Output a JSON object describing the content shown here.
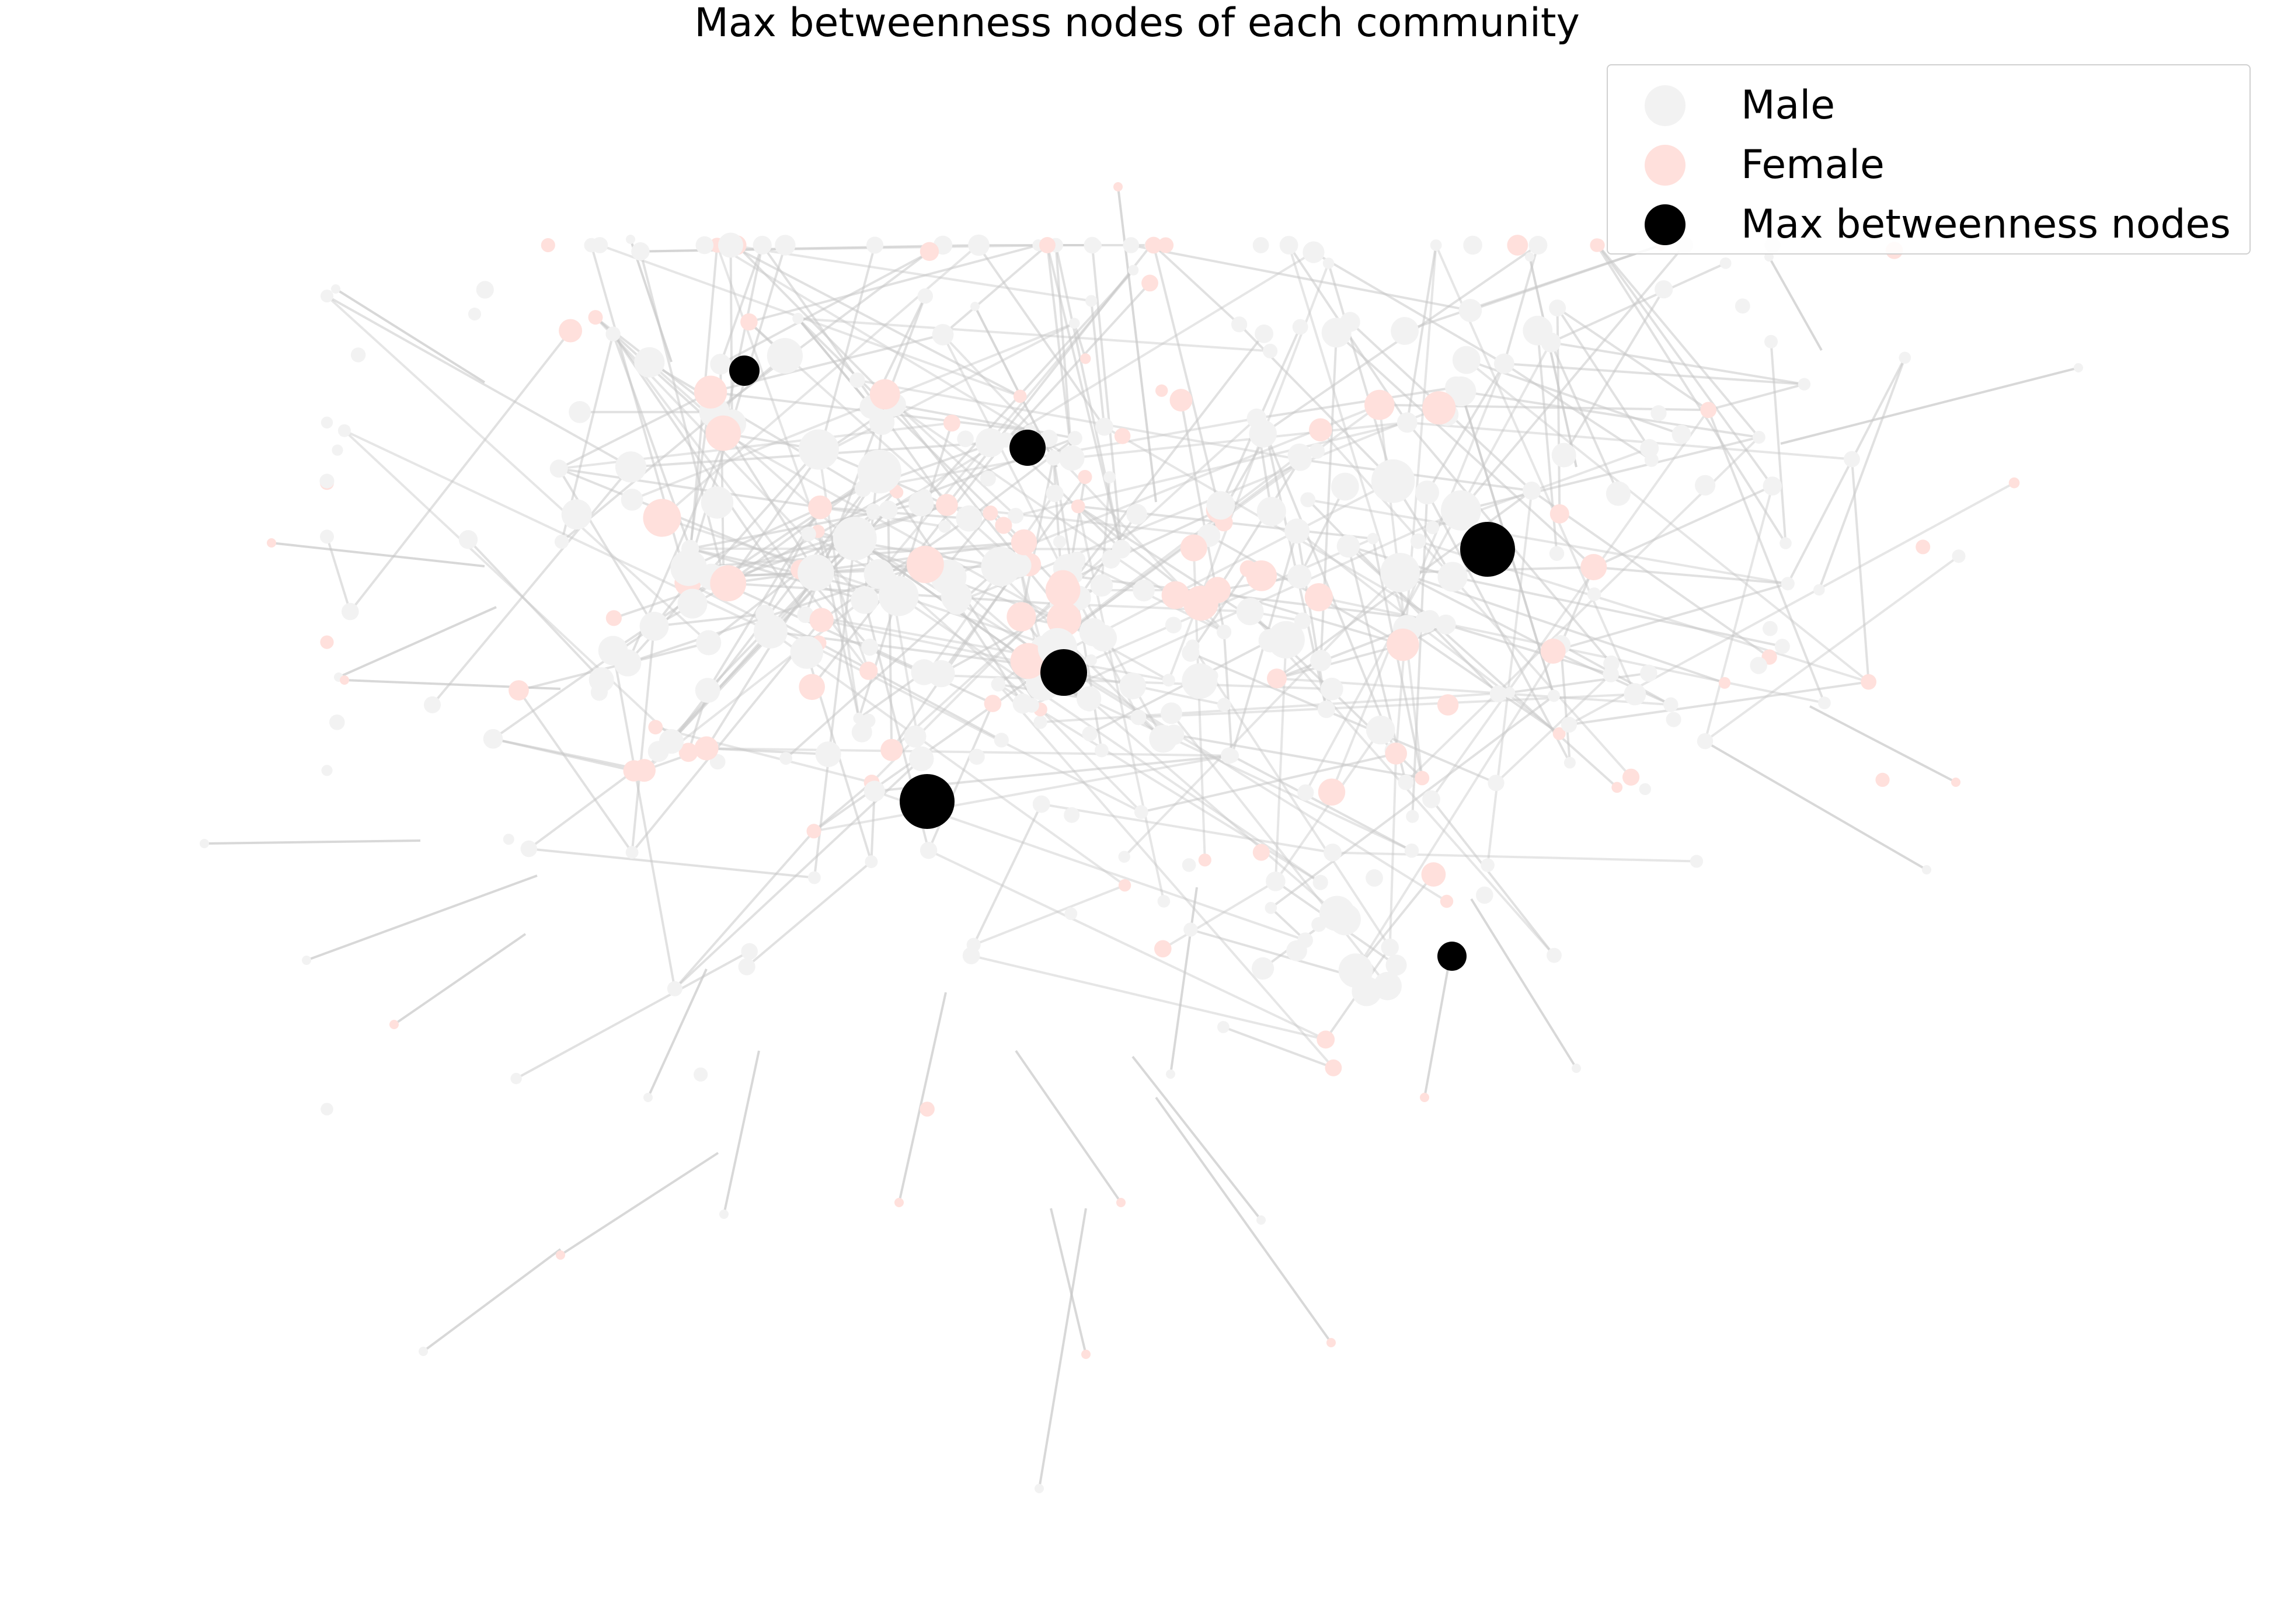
{
  "title": "Max betweenness nodes of each community",
  "legend": [
    {
      "label": "Male",
      "color": "#f2f2f2"
    },
    {
      "label": "Female",
      "color": "#ffe0dc"
    },
    {
      "label": "Max betweenness nodes",
      "color": "#000000"
    }
  ],
  "colors": {
    "male": "#f2f2f2",
    "female": "#ffe0dc",
    "max_betweenness": "#000000",
    "edge": "#c8c8c8"
  }
}
